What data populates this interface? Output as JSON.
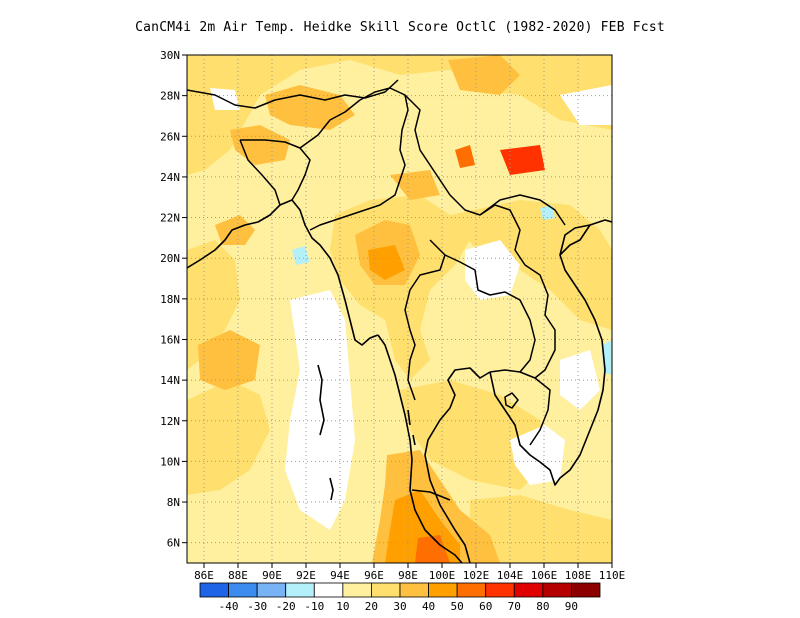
{
  "title": "CanCM4i  2m Air Temp. Heidke Skill Score OctlC (1982-2020) FEB Fcst",
  "map": {
    "region": "Southeast Asia (Myanmar, Thailand, Laos, Cambodia, Vietnam, Bangladesh)",
    "lon_range": [
      85,
      110
    ],
    "lat_range": [
      5,
      30
    ],
    "grid": true
  },
  "lat_labels": [
    "30N",
    "28N",
    "26N",
    "24N",
    "22N",
    "20N",
    "18N",
    "16N",
    "14N",
    "12N",
    "10N",
    "8N",
    "6N"
  ],
  "lon_labels": [
    "86E",
    "88E",
    "90E",
    "92E",
    "94E",
    "96E",
    "98E",
    "100E",
    "102E",
    "104E",
    "106E",
    "108E",
    "110E"
  ],
  "colorbar": {
    "labels": [
      "-40",
      "-30",
      "-20",
      "-10",
      "10",
      "20",
      "30",
      "40",
      "50",
      "60",
      "70",
      "80",
      "90"
    ],
    "colors": [
      "#1e64e6",
      "#3c8cf0",
      "#78b4f5",
      "#b4f0fa",
      "#ffffff",
      "#fff0a0",
      "#ffe06e",
      "#ffc040",
      "#ffa000",
      "#ff6e00",
      "#ff3200",
      "#e10000",
      "#b40000",
      "#8c0000"
    ]
  }
}
